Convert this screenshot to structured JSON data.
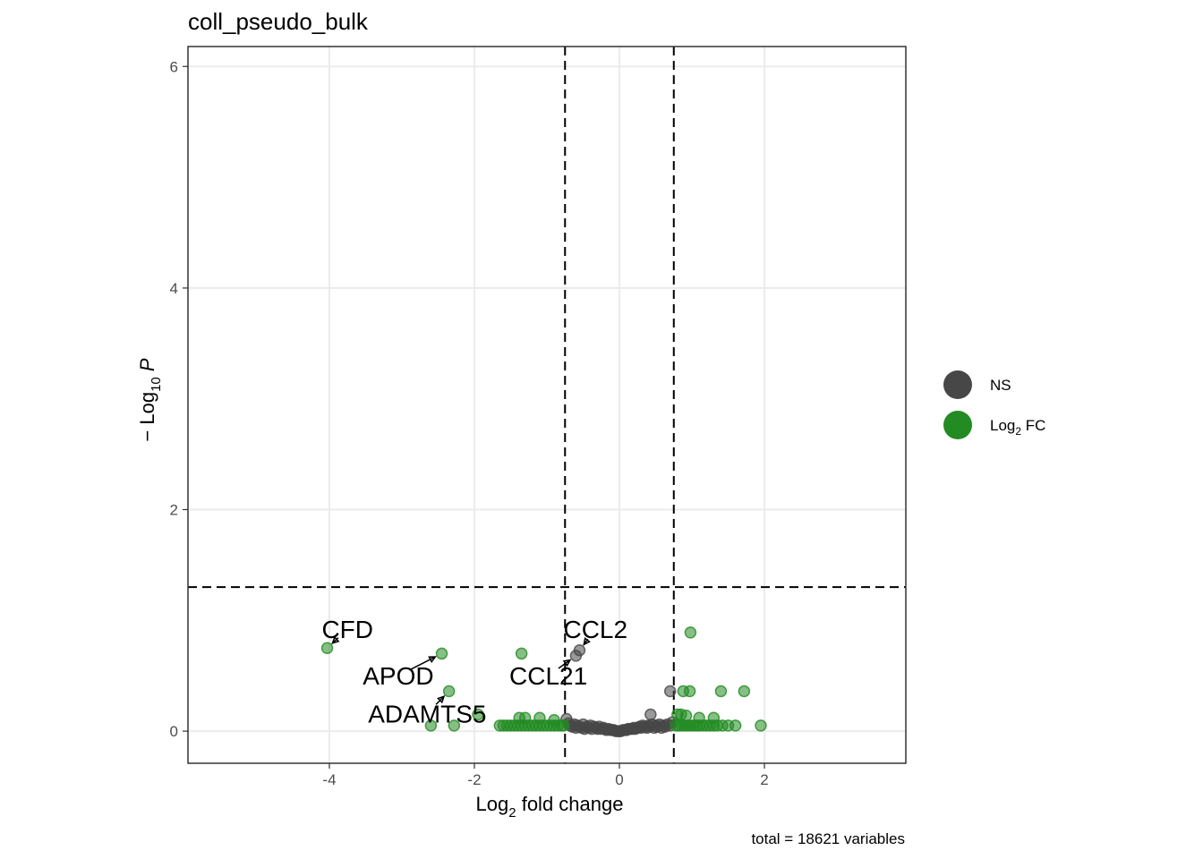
{
  "chart_data": {
    "type": "scatter",
    "title": "coll_pseudo_bulk",
    "xlabel_main": "Log",
    "xlabel_sub": "2",
    "xlabel_rest": " fold change",
    "ylabel_pre": "− Log",
    "ylabel_sub": "10",
    "ylabel_italic": "P",
    "caption": "total = 18621 variables",
    "xlim": [
      -5.95,
      3.95
    ],
    "ylim": [
      -0.29,
      6.18
    ],
    "xticks": [
      -4,
      -2,
      0,
      2
    ],
    "xtick_labels": [
      "-4",
      "-2",
      "0",
      "2"
    ],
    "yticks": [
      0,
      2,
      4,
      6
    ],
    "ytick_labels": [
      "0",
      "2",
      "4",
      "6"
    ],
    "grid": true,
    "fc_cutoff": 0.75,
    "p_cutoff": 1.3,
    "colors": {
      "NS": "#474747",
      "Log2FC": "#228b22"
    },
    "legend": {
      "position": "right",
      "items": [
        {
          "key": "NS",
          "label": "NS",
          "sub": "",
          "rest": ""
        },
        {
          "key": "Log2FC",
          "label": "Log",
          "sub": "2",
          "rest": " FC"
        }
      ]
    },
    "series": [
      {
        "name": "NS",
        "points": [
          [
            -0.73,
            0.11
          ],
          [
            -0.7,
            0.07
          ],
          [
            -0.68,
            0.05
          ],
          [
            -0.65,
            0.04
          ],
          [
            -0.62,
            0.06
          ],
          [
            -0.6,
            0.03
          ],
          [
            -0.58,
            0.05
          ],
          [
            -0.55,
            0.04
          ],
          [
            -0.52,
            0.03
          ],
          [
            -0.5,
            0.06
          ],
          [
            -0.48,
            0.02
          ],
          [
            -0.45,
            0.04
          ],
          [
            -0.42,
            0.03
          ],
          [
            -0.4,
            0.05
          ],
          [
            -0.38,
            0.02
          ],
          [
            -0.35,
            0.04
          ],
          [
            -0.32,
            0.03
          ],
          [
            -0.3,
            0.02
          ],
          [
            -0.28,
            0.04
          ],
          [
            -0.25,
            0.02
          ],
          [
            -0.22,
            0.03
          ],
          [
            -0.2,
            0.02
          ],
          [
            -0.18,
            0.01
          ],
          [
            -0.15,
            0.02
          ],
          [
            -0.12,
            0.01
          ],
          [
            -0.1,
            0.01
          ],
          [
            -0.08,
            0.01
          ],
          [
            -0.05,
            0.0
          ],
          [
            -0.02,
            0.0
          ],
          [
            0.0,
            0.0
          ],
          [
            0.02,
            0.0
          ],
          [
            0.05,
            0.01
          ],
          [
            0.08,
            0.01
          ],
          [
            0.1,
            0.01
          ],
          [
            0.12,
            0.02
          ],
          [
            0.15,
            0.02
          ],
          [
            0.18,
            0.02
          ],
          [
            0.2,
            0.03
          ],
          [
            0.22,
            0.02
          ],
          [
            0.25,
            0.03
          ],
          [
            0.28,
            0.04
          ],
          [
            0.3,
            0.03
          ],
          [
            0.32,
            0.05
          ],
          [
            0.35,
            0.04
          ],
          [
            0.38,
            0.03
          ],
          [
            0.4,
            0.05
          ],
          [
            0.42,
            0.04
          ],
          [
            0.45,
            0.06
          ],
          [
            0.48,
            0.03
          ],
          [
            0.5,
            0.05
          ],
          [
            0.52,
            0.04
          ],
          [
            0.55,
            0.06
          ],
          [
            0.58,
            0.03
          ],
          [
            0.6,
            0.05
          ],
          [
            0.63,
            0.04
          ],
          [
            0.66,
            0.06
          ],
          [
            0.7,
            0.05
          ],
          [
            0.73,
            0.08
          ],
          [
            -0.6,
            0.68
          ],
          [
            -0.55,
            0.73
          ],
          [
            0.43,
            0.15
          ],
          [
            0.7,
            0.36
          ]
        ]
      },
      {
        "name": "Log2FC",
        "points": [
          [
            -4.03,
            0.75
          ],
          [
            -2.45,
            0.7
          ],
          [
            -2.35,
            0.36
          ],
          [
            -2.6,
            0.05
          ],
          [
            -2.28,
            0.05
          ],
          [
            -1.95,
            0.15
          ],
          [
            -1.35,
            0.7
          ],
          [
            -1.65,
            0.05
          ],
          [
            -1.6,
            0.05
          ],
          [
            -1.55,
            0.05
          ],
          [
            -1.5,
            0.05
          ],
          [
            -1.45,
            0.05
          ],
          [
            -1.4,
            0.05
          ],
          [
            -1.35,
            0.05
          ],
          [
            -1.3,
            0.05
          ],
          [
            -1.25,
            0.05
          ],
          [
            -1.2,
            0.05
          ],
          [
            -1.15,
            0.05
          ],
          [
            -1.1,
            0.05
          ],
          [
            -1.05,
            0.05
          ],
          [
            -1.0,
            0.05
          ],
          [
            -0.95,
            0.05
          ],
          [
            -0.9,
            0.05
          ],
          [
            -0.85,
            0.05
          ],
          [
            -0.8,
            0.05
          ],
          [
            -0.77,
            0.05
          ],
          [
            -1.38,
            0.12
          ],
          [
            -1.3,
            0.12
          ],
          [
            -1.1,
            0.12
          ],
          [
            -0.9,
            0.1
          ],
          [
            0.98,
            0.89
          ],
          [
            0.88,
            0.36
          ],
          [
            0.97,
            0.36
          ],
          [
            1.4,
            0.36
          ],
          [
            1.72,
            0.36
          ],
          [
            0.8,
            0.15
          ],
          [
            0.85,
            0.15
          ],
          [
            0.92,
            0.14
          ],
          [
            1.1,
            0.12
          ],
          [
            1.3,
            0.12
          ],
          [
            0.78,
            0.05
          ],
          [
            0.82,
            0.05
          ],
          [
            0.86,
            0.05
          ],
          [
            0.9,
            0.05
          ],
          [
            0.94,
            0.05
          ],
          [
            0.98,
            0.05
          ],
          [
            1.02,
            0.05
          ],
          [
            1.06,
            0.05
          ],
          [
            1.1,
            0.05
          ],
          [
            1.15,
            0.05
          ],
          [
            1.2,
            0.05
          ],
          [
            1.25,
            0.05
          ],
          [
            1.3,
            0.05
          ],
          [
            1.35,
            0.05
          ],
          [
            1.42,
            0.05
          ],
          [
            1.5,
            0.05
          ],
          [
            1.6,
            0.05
          ],
          [
            1.95,
            0.05
          ]
        ]
      }
    ],
    "annotations": [
      {
        "label": "CFD",
        "x": -4.03,
        "y": 0.75,
        "tx": -3.75,
        "ty": 0.92
      },
      {
        "label": "APOD",
        "x": -2.45,
        "y": 0.7,
        "tx": -3.05,
        "ty": 0.5
      },
      {
        "label": "ADAMTS5",
        "x": -2.35,
        "y": 0.36,
        "tx": -2.65,
        "ty": 0.16
      },
      {
        "label": "CCL2",
        "x": -0.55,
        "y": 0.73,
        "tx": -0.33,
        "ty": 0.92
      },
      {
        "label": "CCL21",
        "x": -0.6,
        "y": 0.68,
        "tx": -0.98,
        "ty": 0.5
      }
    ]
  }
}
